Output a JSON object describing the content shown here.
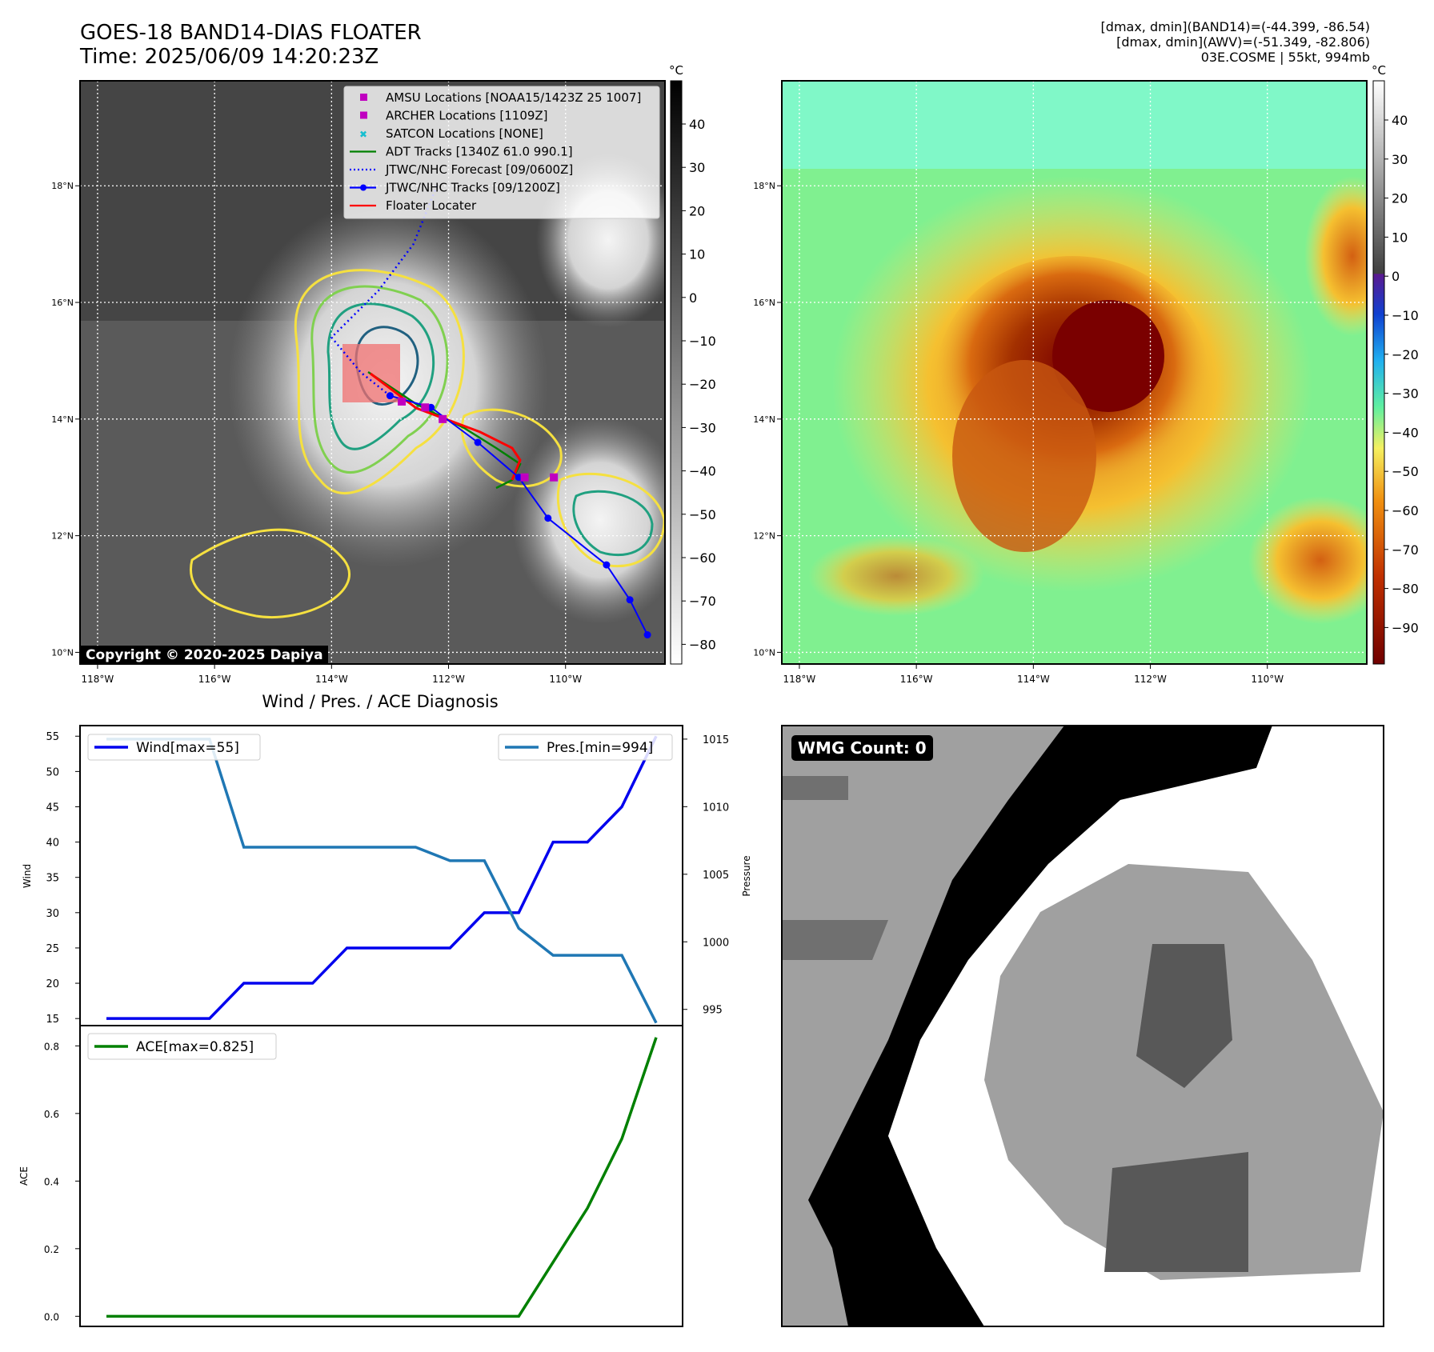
{
  "title": {
    "line1": "GOES-18 BAND14-DIAS FLOATER",
    "line2": "Time: 2025/06/09 14:20:23Z"
  },
  "info": {
    "line1": "[dmax, dmin](BAND14)=(-44.399, -86.54)",
    "line2": "[dmax, dmin](AWV)=(-51.349, -82.806)",
    "line3": "03E.COSME | 55kt, 994mb"
  },
  "map": {
    "lon_ticks": [
      "118°W",
      "116°W",
      "114°W",
      "112°W",
      "110°W"
    ],
    "lat_ticks": [
      "18°N",
      "16°N",
      "14°N",
      "12°N",
      "10°N"
    ],
    "copyright": "Copyright © 2020-2025 Dapiya",
    "legend": [
      {
        "label": "AMSU Locations [NOAA15/1423Z 25 1007]",
        "kind": "square",
        "color": "#c000c0"
      },
      {
        "label": "ARCHER Locations [1109Z]",
        "kind": "square",
        "color": "#c000c0"
      },
      {
        "label": "SATCON Locations [NONE]",
        "kind": "x",
        "color": "#17becf"
      },
      {
        "label": "ADT Tracks [1340Z 61.0 990.1]",
        "kind": "line",
        "color": "#008000"
      },
      {
        "label": "JTWC/NHC Forecast [09/0600Z]",
        "kind": "dotted",
        "color": "#0000ff"
      },
      {
        "label": "JTWC/NHC Tracks [09/1200Z]",
        "kind": "linedot",
        "color": "#0000ff"
      },
      {
        "label": "Floater Locater",
        "kind": "line",
        "color": "#ff0000"
      }
    ],
    "track": [
      [
        -108.6,
        10.3
      ],
      [
        -108.9,
        10.9
      ],
      [
        -109.3,
        11.5
      ],
      [
        -110.3,
        12.3
      ],
      [
        -110.8,
        13.0
      ],
      [
        -111.5,
        13.6
      ],
      [
        -112.3,
        14.2
      ],
      [
        -113.0,
        14.4
      ]
    ],
    "forecast": [
      [
        -113.0,
        14.4
      ],
      [
        -113.5,
        14.8
      ],
      [
        -114.0,
        15.4
      ],
      [
        -113.2,
        16.2
      ],
      [
        -112.6,
        17.0
      ],
      [
        -112.2,
        18.0
      ]
    ],
    "amsu_points": [
      [
        -112.8,
        14.3
      ],
      [
        -112.4,
        14.2
      ],
      [
        -112.1,
        14.0
      ],
      [
        -110.7,
        13.0
      ],
      [
        -110.2,
        13.0
      ]
    ]
  },
  "colorbar_gray": {
    "unit": "°C",
    "ticks": [
      "40",
      "30",
      "20",
      "10",
      "0",
      "−10",
      "−20",
      "−30",
      "−40",
      "−50",
      "−60",
      "−70",
      "−80"
    ]
  },
  "colorbar_color": {
    "unit": "°C",
    "ticks": [
      "40",
      "30",
      "20",
      "10",
      "0",
      "−10",
      "−20",
      "−30",
      "−40",
      "−50",
      "−60",
      "−70",
      "−80",
      "−90"
    ]
  },
  "wmg": {
    "label": "WMG Count: 0"
  },
  "chart_data": [
    {
      "type": "line",
      "title": "Wind / Pres. / ACE Diagnosis",
      "ylabel": "Wind",
      "y2label": "Pressure",
      "ylim": [
        14,
        56.5
      ],
      "y2lim": [
        993.8,
        1016
      ],
      "x": [
        0,
        1,
        2,
        3,
        4,
        5,
        6,
        7,
        8,
        9,
        10,
        11,
        12,
        13,
        14,
        15,
        16
      ],
      "yticks": [
        "15",
        "20",
        "25",
        "30",
        "35",
        "40",
        "45",
        "50",
        "55"
      ],
      "y2ticks": [
        "995",
        "1000",
        "1005",
        "1010",
        "1015"
      ],
      "series": [
        {
          "name": "Wind[max=55]",
          "color": "#0000ee",
          "axis": "left",
          "values": [
            15,
            15,
            15,
            15,
            20,
            20,
            20,
            25,
            25,
            25,
            25,
            30,
            30,
            40,
            40,
            45,
            55
          ]
        },
        {
          "name": "Pres.[min=994]",
          "color": "#1f77b4",
          "axis": "right",
          "values": [
            1015,
            1015,
            1015,
            1015,
            1007,
            1007,
            1007,
            1007,
            1007,
            1007,
            1006,
            1006,
            1001,
            999,
            999,
            999,
            994
          ]
        }
      ]
    },
    {
      "type": "line",
      "ylabel": "ACE",
      "ylim": [
        -0.03,
        0.86
      ],
      "yticks": [
        "0.0",
        "0.2",
        "0.4",
        "0.6",
        "0.8"
      ],
      "x": [
        0,
        1,
        2,
        3,
        4,
        5,
        6,
        7,
        8,
        9,
        10,
        11,
        12,
        13,
        14,
        15,
        16
      ],
      "series": [
        {
          "name": "ACE[max=0.825]",
          "color": "#008000",
          "values": [
            0,
            0,
            0,
            0,
            0,
            0,
            0,
            0,
            0,
            0,
            0,
            0,
            0,
            0.16,
            0.32,
            0.525,
            0.825
          ]
        }
      ]
    }
  ]
}
